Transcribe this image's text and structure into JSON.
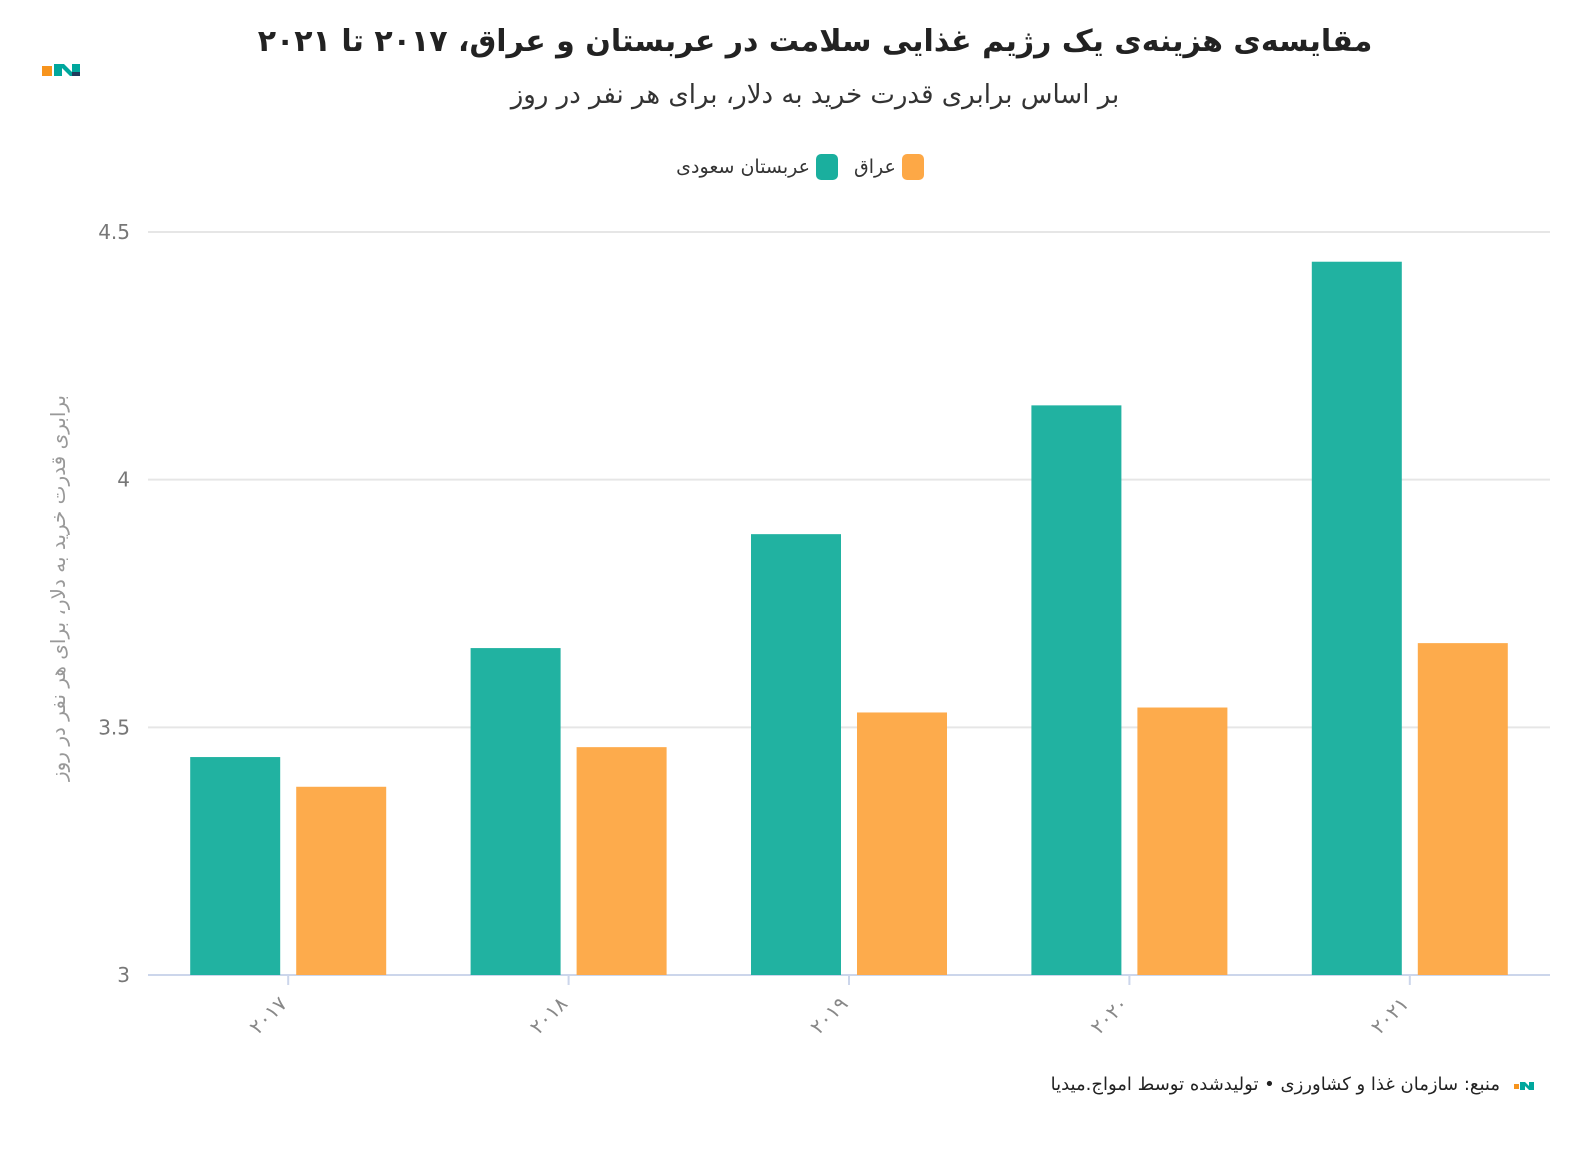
{
  "header": {
    "title": "مقایسه‌ی هزینه‌ی یک رژیم غذایی سلامت در عربستان و عراق، ۲۰۱۷ تا ۲۰۲۱",
    "subtitle": "بر اساس برابری قدرت خرید به دلار، برای هر نفر در روز"
  },
  "footer": {
    "source": "منبع: سازمان غذا و کشاورزی • تولیدشده توسط امواج.میدیا"
  },
  "logo": {
    "icon": "amwaj-logo-icon",
    "colors": [
      "#f7941d",
      "#00a79d",
      "#1f3b5c"
    ]
  },
  "chart_data": {
    "type": "bar",
    "categories": [
      "۲۰۱۷",
      "۲۰۱۸",
      "۲۰۱۹",
      "۲۰۲۰",
      "۲۰۲۱"
    ],
    "series": [
      {
        "name": "عربستان سعودی",
        "color": "#1aaf9e",
        "values": [
          3.44,
          3.66,
          3.89,
          4.15,
          4.44
        ]
      },
      {
        "name": "عراق",
        "color": "#fda846",
        "values": [
          3.38,
          3.46,
          3.53,
          3.54,
          3.67
        ]
      }
    ],
    "ylim": [
      3,
      4.5
    ],
    "yticks": [
      3,
      3.5,
      4,
      4.5
    ],
    "ytick_labels": [
      "3",
      "3.5",
      "4",
      "4.5"
    ],
    "ylabel": "برابری قدرت خرید به دلار، برای هر نفر در روز",
    "xlabel": "",
    "grid": true,
    "legend_position": "top-center"
  }
}
